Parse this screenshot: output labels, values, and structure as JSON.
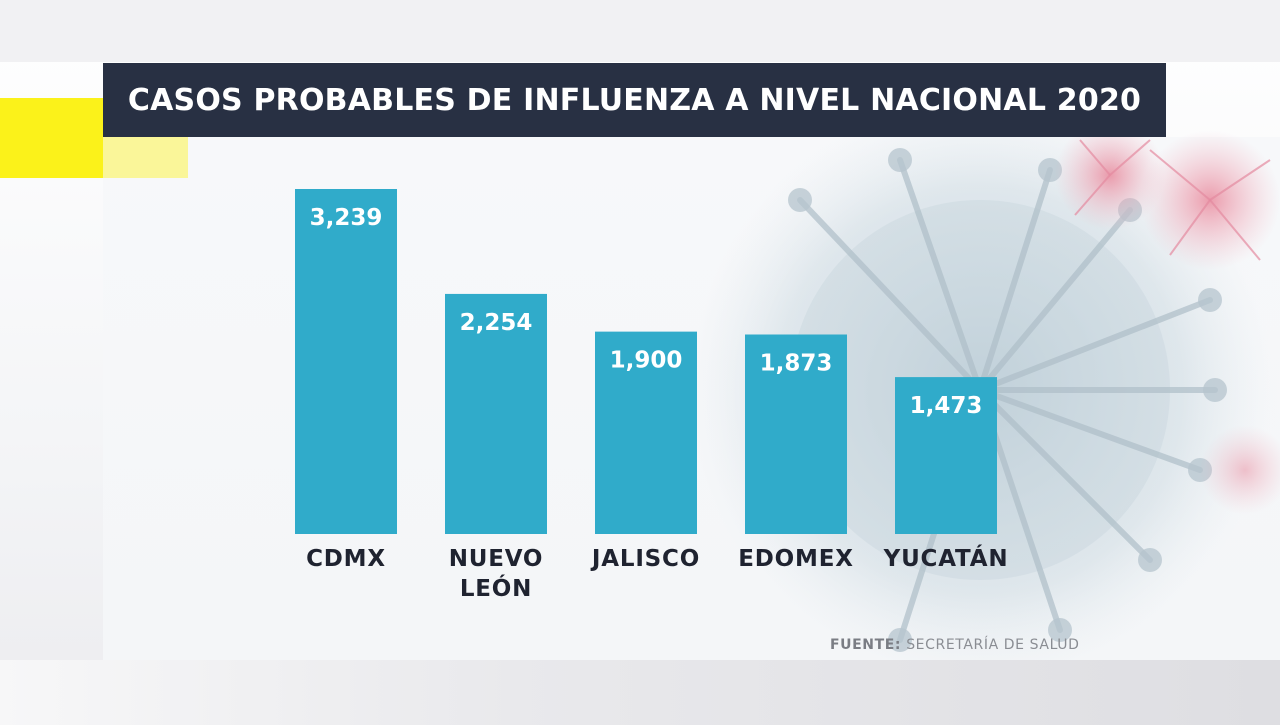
{
  "title": "CASOS PROBABLES DE INFLUENZA A NIVEL NACIONAL 2020",
  "source": {
    "label": "FUENTE:",
    "text": "SECRETARÍA DE SALUD"
  },
  "colors": {
    "bar": "#30abca",
    "title_bg": "#283043",
    "accent_yellow": "#fbf21a"
  },
  "chart_data": {
    "type": "bar",
    "title": "CASOS PROBABLES DE INFLUENZA A NIVEL NACIONAL 2020",
    "categories": [
      [
        "CDMX"
      ],
      [
        "NUEVO",
        "LEÓN"
      ],
      [
        "JALISCO"
      ],
      [
        "EDOMEX"
      ],
      [
        "YUCATÁN"
      ]
    ],
    "values": [
      3239,
      2254,
      1900,
      1873,
      1473
    ],
    "value_labels": [
      "3,239",
      "2,254",
      "1,900",
      "1,873",
      "1,473"
    ],
    "xlabel": "",
    "ylabel": "",
    "ylim": [
      0,
      3239
    ],
    "grid": false,
    "legend": "none"
  }
}
